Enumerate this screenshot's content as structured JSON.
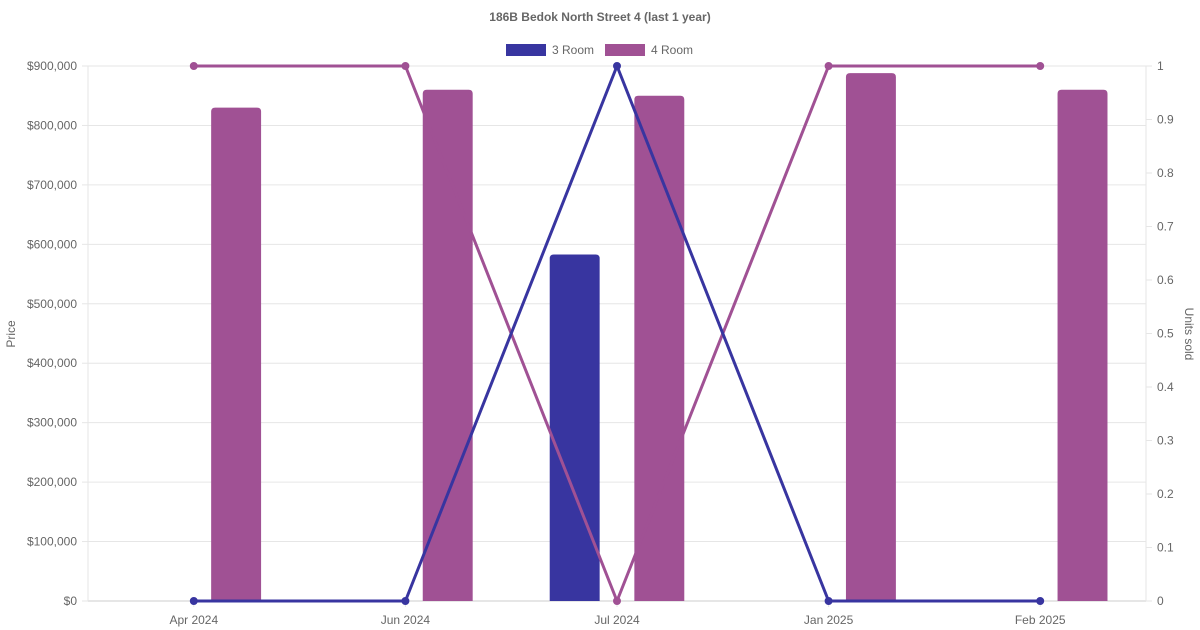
{
  "chart_data": {
    "type": "bar",
    "title": "186B Bedok North Street 4 (last 1 year)",
    "categories": [
      "Apr 2024",
      "Jun 2024",
      "Jul 2024",
      "Jan 2025",
      "Feb 2025"
    ],
    "bar_series": [
      {
        "name": "3 Room",
        "color": "#3835a0",
        "values": [
          null,
          null,
          583000,
          null,
          null
        ]
      },
      {
        "name": "4 Room",
        "color": "#a05194",
        "values": [
          830000,
          860000,
          850000,
          888000,
          860000
        ]
      }
    ],
    "line_series": [
      {
        "name": "3 Room",
        "color": "#3835a0",
        "axis": "right",
        "values": [
          0,
          0,
          1,
          0,
          0
        ]
      },
      {
        "name": "4 Room",
        "color": "#a05194",
        "axis": "right",
        "values": [
          1,
          1,
          0,
          1,
          1
        ]
      }
    ],
    "left_axis": {
      "label": "Price",
      "ylim": [
        0,
        900000
      ],
      "ticks": [
        "$0",
        "$100,000",
        "$200,000",
        "$300,000",
        "$400,000",
        "$500,000",
        "$600,000",
        "$700,000",
        "$800,000",
        "$900,000"
      ]
    },
    "right_axis": {
      "label": "Units sold",
      "ylim": [
        0,
        1
      ],
      "ticks": [
        "0",
        "0.1",
        "0.2",
        "0.3",
        "0.4",
        "0.5",
        "0.6",
        "0.7",
        "0.8",
        "0.9",
        "1"
      ]
    },
    "legend": {
      "placement": "top-center",
      "items": [
        {
          "label": "3 Room",
          "color": "#3835a0"
        },
        {
          "label": "4 Room",
          "color": "#a05194"
        }
      ]
    },
    "grid": true
  }
}
